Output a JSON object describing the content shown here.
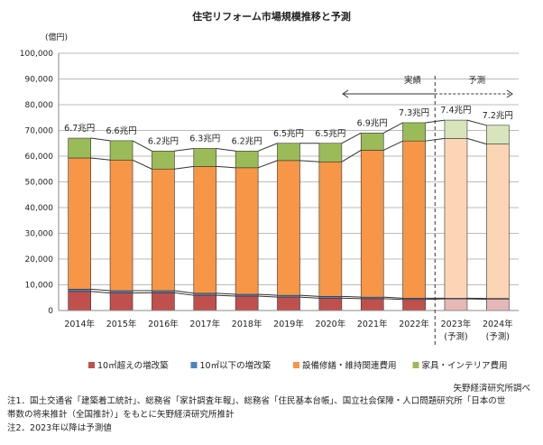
{
  "chart_data": {
    "type": "bar",
    "stacked": true,
    "title": "住宅リフォーム市場規模推移と予測",
    "ylabel": "(億円)",
    "ylim": [
      0,
      100000
    ],
    "yticks": [
      "0",
      "10,000",
      "20,000",
      "30,000",
      "40,000",
      "50,000",
      "60,000",
      "70,000",
      "80,000",
      "90,000",
      "100,000"
    ],
    "grid": true,
    "categories": [
      "2014年",
      "2015年",
      "2016年",
      "2017年",
      "2018年",
      "2019年",
      "2020年",
      "2021年",
      "2022年",
      "2023年",
      "2024年"
    ],
    "category_sublabels": [
      "",
      "",
      "",
      "",
      "",
      "",
      "",
      "",
      "",
      "(予測)",
      "(予測)"
    ],
    "totals_labels": [
      "6.7兆円",
      "6.6兆円",
      "6.2兆円",
      "6.3兆円",
      "6.2兆円",
      "6.5兆円",
      "6.5兆円",
      "6.9兆円",
      "7.3兆円",
      "7.4兆円",
      "7.2兆円"
    ],
    "series": [
      {
        "name": "10㎡超えの増改築",
        "color": "#c0504d",
        "forecast_color": "#e6b8b7",
        "values": [
          7400,
          6800,
          6900,
          5900,
          5600,
          5200,
          4800,
          4600,
          4300,
          4500,
          4400
        ]
      },
      {
        "name": "10㎡以下の増改築",
        "color": "#4f81bd",
        "forecast_color": "#b9cde5",
        "values": [
          900,
          900,
          800,
          800,
          700,
          700,
          700,
          600,
          500,
          300,
          300
        ]
      },
      {
        "name": "設備修繕・維持関連費用",
        "color": "#f79646",
        "forecast_color": "#fcd5b4",
        "values": [
          51000,
          50800,
          47300,
          49300,
          49200,
          52400,
          52300,
          57100,
          61100,
          62100,
          60000
        ]
      },
      {
        "name": "家具・インテリア費用",
        "color": "#9bbb59",
        "forecast_color": "#d7e4bc",
        "values": [
          7700,
          7500,
          7000,
          7000,
          6500,
          6700,
          7200,
          6700,
          7100,
          7100,
          7300
        ]
      }
    ],
    "forecast_start_index": 9,
    "annotations": {
      "actual": "実績",
      "forecast": "予測"
    },
    "legend_placement": "bottom",
    "source": "矢野経済研究所調べ"
  },
  "notes": [
    "注1．国土交通省「建築着工統計」、総務省「家計調査年報」、総務省「住民基本台帳」、国立社会保障・人口問題研究所「日本の世",
    "帯数の将来推計（全国推計）」をもとに矢野経済研究所推計",
    "注2．2023年以降は予測値"
  ]
}
